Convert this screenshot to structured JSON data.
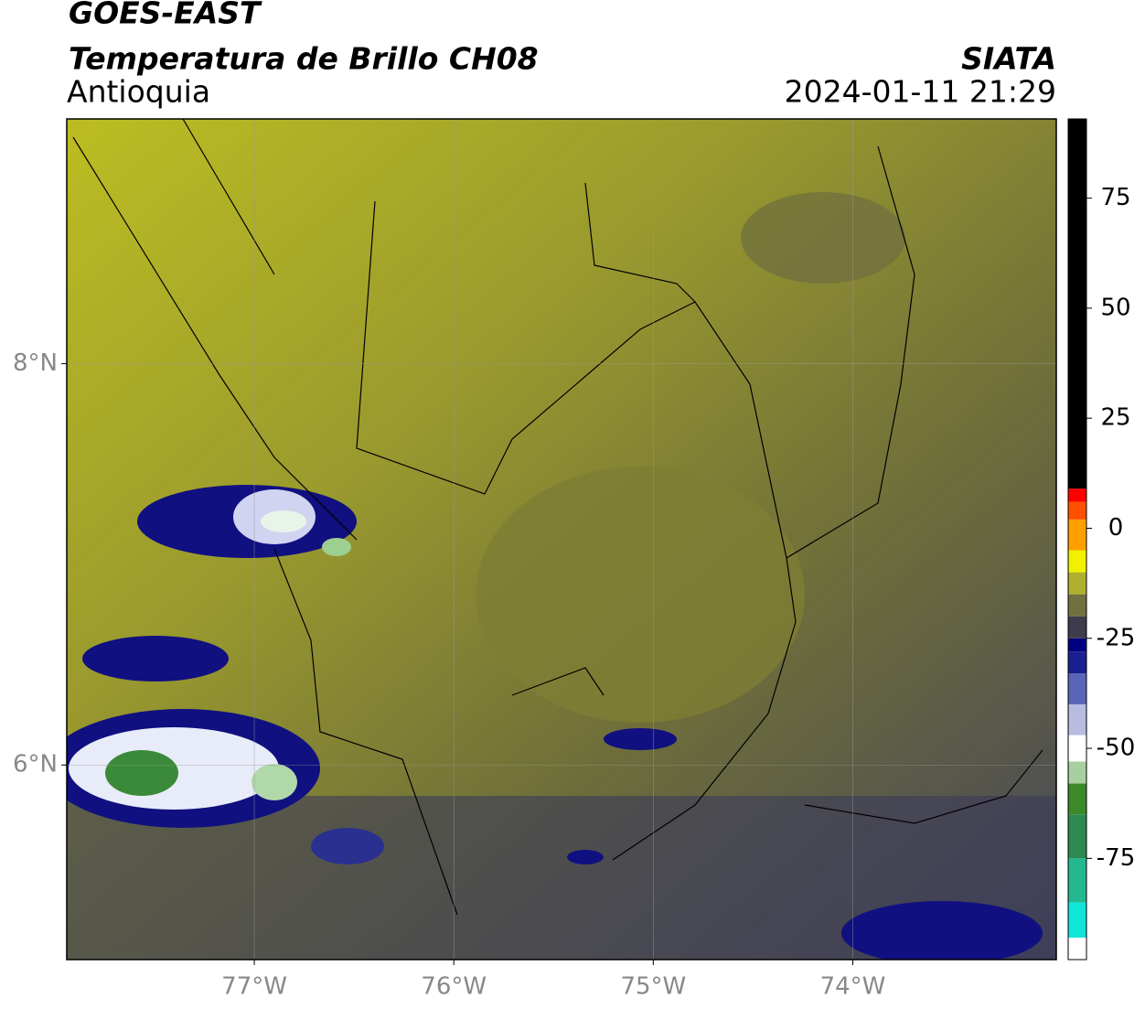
{
  "header": {
    "title": "GOES-EAST",
    "subtitle": "Temperatura de Brillo CH08",
    "region": "Antioquia",
    "source": "SIATA",
    "datetime": "2024-01-11 21:29"
  },
  "map": {
    "xlim": [
      -77.94,
      -72.98
    ],
    "ylim": [
      5.03,
      9.22
    ],
    "xticks": [
      {
        "value": -77,
        "label": "77°W"
      },
      {
        "value": -76,
        "label": "76°W"
      },
      {
        "value": -75,
        "label": "75°W"
      },
      {
        "value": -74,
        "label": "74°W"
      }
    ],
    "yticks": [
      {
        "value": 8,
        "label": "8°N"
      },
      {
        "value": 6,
        "label": "6°N"
      }
    ],
    "grid": true
  },
  "colorbar": {
    "lim": [
      -98,
      93
    ],
    "ticks": [
      75,
      50,
      25,
      0,
      -25,
      -50,
      -75
    ],
    "colormap": [
      {
        "value": -98,
        "color": "#ffffff"
      },
      {
        "value": -93,
        "color": "#10e5d8"
      },
      {
        "value": -85,
        "color": "#24b890"
      },
      {
        "value": -75,
        "color": "#2c8a50"
      },
      {
        "value": -65,
        "color": "#3a8a2a"
      },
      {
        "value": -58,
        "color": "#a8cfa0"
      },
      {
        "value": -53,
        "color": "#ffffff"
      },
      {
        "value": -47,
        "color": "#b8bce0"
      },
      {
        "value": -40,
        "color": "#5a64b8"
      },
      {
        "value": -33,
        "color": "#1a2090"
      },
      {
        "value": -28,
        "color": "#000080"
      },
      {
        "value": -25,
        "color": "#3c3c4c"
      },
      {
        "value": -20,
        "color": "#707040"
      },
      {
        "value": -15,
        "color": "#b0b030"
      },
      {
        "value": -10,
        "color": "#f0f000"
      },
      {
        "value": -5,
        "color": "#ffa000"
      },
      {
        "value": 2,
        "color": "#ff5000"
      },
      {
        "value": 6,
        "color": "#ff0000"
      },
      {
        "value": 9,
        "color": "#000000"
      }
    ]
  }
}
